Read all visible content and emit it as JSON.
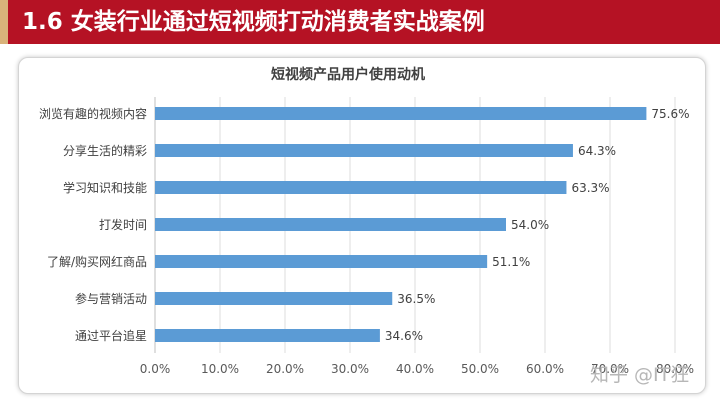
{
  "header": {
    "title": "1.6 女装行业通过短视频打动消费者实战案例"
  },
  "colors": {
    "banner": "#b51224",
    "bar": "#5b9bd5"
  },
  "watermark": "知乎 @IT狂",
  "chart_data": {
    "type": "bar",
    "orientation": "horizontal",
    "title": "短视频产品用户使用动机",
    "categories": [
      "浏览有趣的视频内容",
      "分享生活的精彩",
      "学习知识和技能",
      "打发时间",
      "了解/购买网红商品",
      "参与营销活动",
      "通过平台追星"
    ],
    "values": [
      75.6,
      64.3,
      63.3,
      54.0,
      51.1,
      36.5,
      34.6
    ],
    "value_labels": [
      "75.6%",
      "64.3%",
      "63.3%",
      "54.0%",
      "51.1%",
      "36.5%",
      "34.6%"
    ],
    "xlim": [
      0,
      80
    ],
    "xticks": [
      0,
      10,
      20,
      30,
      40,
      50,
      60,
      70,
      80
    ],
    "xtick_labels": [
      "0.0%",
      "10.0%",
      "20.0%",
      "30.0%",
      "40.0%",
      "50.0%",
      "60.0%",
      "70.0%",
      "80.0%"
    ],
    "grid": true,
    "legend": "none"
  }
}
